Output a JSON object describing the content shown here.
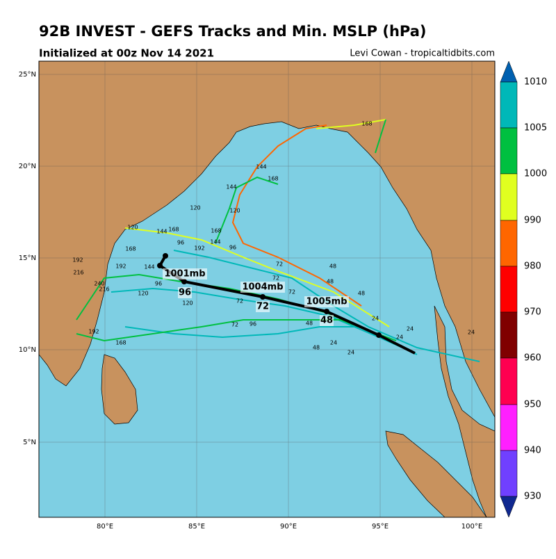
{
  "header": {
    "title": "92B INVEST - GEFS Tracks and Min. MSLP (hPa)",
    "subtitle": "Initialized at 00z Nov 14 2021",
    "credit": "Levi Cowan - tropicaltidbits.com"
  },
  "map": {
    "lon_labels": [
      "80°E",
      "85°E",
      "90°E",
      "95°E",
      "100°E"
    ],
    "lat_labels": [
      "25°N",
      "20°N",
      "15°N",
      "10°N",
      "5°N"
    ],
    "mean_track_labels": [
      "1001mb",
      "1004mb",
      "1005mb",
      "96",
      "72",
      "48"
    ],
    "hour_labels": [
      "168",
      "144",
      "168",
      "144",
      "120",
      "120",
      "120",
      "168",
      "96",
      "168",
      "144",
      "192",
      "96",
      "72",
      "72",
      "72",
      "48",
      "48",
      "48",
      "72",
      "48",
      "24",
      "24",
      "24",
      "24",
      "24",
      "192",
      "216",
      "240",
      "216",
      "192",
      "168",
      "120",
      "144",
      "96",
      "120",
      "72",
      "96",
      "48",
      "24",
      "192",
      "144",
      "168"
    ]
  },
  "colorbar": {
    "labels": [
      "1010",
      "1005",
      "1000",
      "990",
      "980",
      "970",
      "960",
      "950",
      "940",
      "930"
    ]
  }
}
